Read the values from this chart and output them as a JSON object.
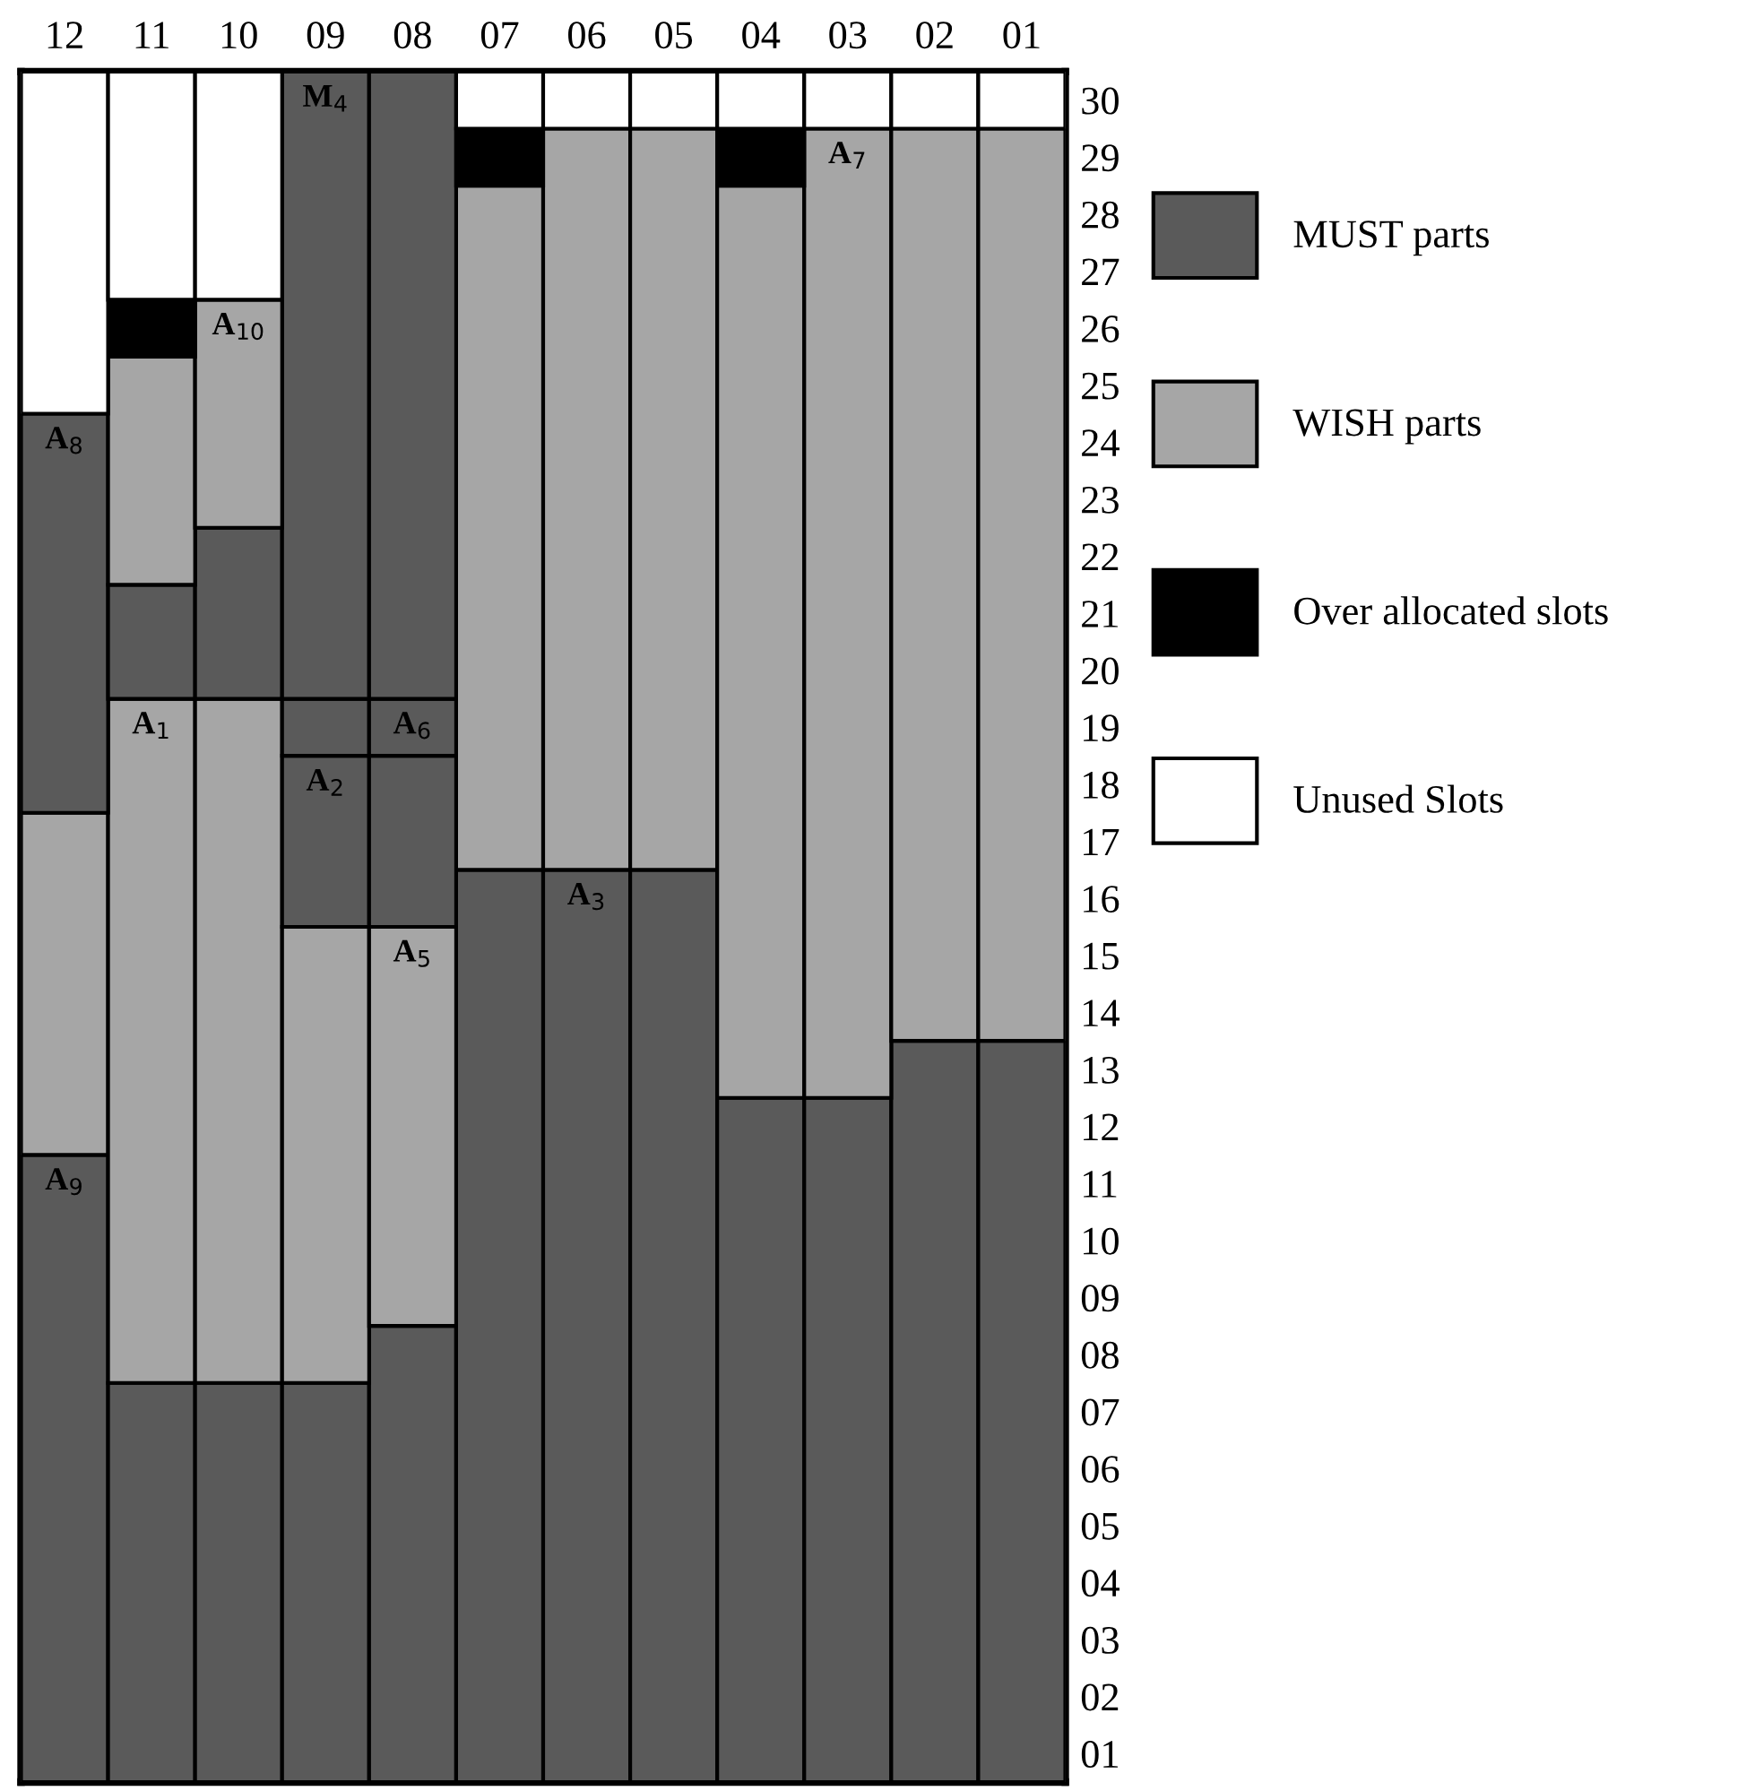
{
  "chart_data": {
    "type": "bar",
    "stacked": true,
    "categories": [
      "12",
      "11",
      "10",
      "09",
      "08",
      "07",
      "06",
      "05",
      "04",
      "03",
      "02",
      "01"
    ],
    "series": [
      {
        "name": "MUST parts",
        "color": "#5a5a5a",
        "values": [
          11,
          7,
          7,
          7,
          8,
          16,
          16,
          16,
          12,
          12,
          13,
          13
        ]
      },
      {
        "name": "WISH parts",
        "color": "#a6a6a6",
        "values": [
          6,
          12,
          12,
          8,
          7,
          12,
          13,
          13,
          16,
          17,
          16,
          16
        ]
      },
      {
        "color": "#5a5a5a",
        "values": [
          7,
          2,
          3,
          3,
          3,
          null,
          null,
          null,
          null,
          null,
          null,
          null
        ]
      },
      {
        "color": "#5a5a5a",
        "values": [
          null,
          null,
          null,
          1,
          1,
          null,
          null,
          null,
          null,
          null,
          null,
          null
        ]
      },
      {
        "color": "#5a5a5a",
        "values": [
          null,
          null,
          null,
          11,
          11,
          null,
          null,
          null,
          null,
          null,
          null,
          null
        ]
      },
      {
        "color": "#a6a6a6",
        "values": [
          null,
          4,
          4,
          null,
          null,
          null,
          null,
          null,
          null,
          null,
          null,
          null
        ]
      },
      {
        "name": "Over allocated slots",
        "color": "#000000",
        "values": [
          null,
          1,
          null,
          null,
          null,
          1,
          null,
          null,
          1,
          null,
          null,
          null
        ]
      },
      {
        "name": "Unused Slots",
        "color": "#ffffff",
        "values": [
          6,
          4,
          4,
          null,
          null,
          1,
          1,
          1,
          1,
          1,
          1,
          1
        ]
      }
    ],
    "ylim": [
      0,
      30
    ],
    "yticks": [
      {
        "value": 0.5,
        "label": "01"
      },
      {
        "value": 1.5,
        "label": "02"
      },
      {
        "value": 2.5,
        "label": "03"
      },
      {
        "value": 3.5,
        "label": "04"
      },
      {
        "value": 4.5,
        "label": "05"
      },
      {
        "value": 5.5,
        "label": "06"
      },
      {
        "value": 6.5,
        "label": "07"
      },
      {
        "value": 7.5,
        "label": "08"
      },
      {
        "value": 8.5,
        "label": "09"
      },
      {
        "value": 9.5,
        "label": "10"
      },
      {
        "value": 10.5,
        "label": "11"
      },
      {
        "value": 11.5,
        "label": "12"
      },
      {
        "value": 12.5,
        "label": "13"
      },
      {
        "value": 13.5,
        "label": "14"
      },
      {
        "value": 14.5,
        "label": "15"
      },
      {
        "value": 15.5,
        "label": "16"
      },
      {
        "value": 16.5,
        "label": "17"
      },
      {
        "value": 17.5,
        "label": "18"
      },
      {
        "value": 18.5,
        "label": "19"
      },
      {
        "value": 19.5,
        "label": "20"
      },
      {
        "value": 20.5,
        "label": "21"
      },
      {
        "value": 21.5,
        "label": "22"
      },
      {
        "value": 22.5,
        "label": "23"
      },
      {
        "value": 23.5,
        "label": "24"
      },
      {
        "value": 24.5,
        "label": "25"
      },
      {
        "value": 25.5,
        "label": "26"
      },
      {
        "value": 26.5,
        "label": "27"
      },
      {
        "value": 27.5,
        "label": "28"
      },
      {
        "value": 28.5,
        "label": "29"
      },
      {
        "value": 29.5,
        "label": "30"
      }
    ],
    "annotations": [
      {
        "text": "A$_{9}$",
        "x": "12",
        "y": 11
      },
      {
        "text": "A$_{8}$",
        "x": "12",
        "y": 24
      },
      {
        "text": "A$_{1}$",
        "x": "11",
        "y": 19
      },
      {
        "text": "A$_{10}$",
        "x": "10",
        "y": 26
      },
      {
        "text": "M$_{4}$",
        "x": "09",
        "y": 30
      },
      {
        "text": "A$_{6}$",
        "x": "08",
        "y": 19
      },
      {
        "text": "A$_{2}$",
        "x": "09",
        "y": 18
      },
      {
        "text": "A$_{5}$",
        "x": "08",
        "y": 15
      },
      {
        "text": "A$_{3}$",
        "x": "06",
        "y": 16
      },
      {
        "text": "A$_{7}$",
        "x": "03",
        "y": 29
      }
    ],
    "legend": "right"
  }
}
